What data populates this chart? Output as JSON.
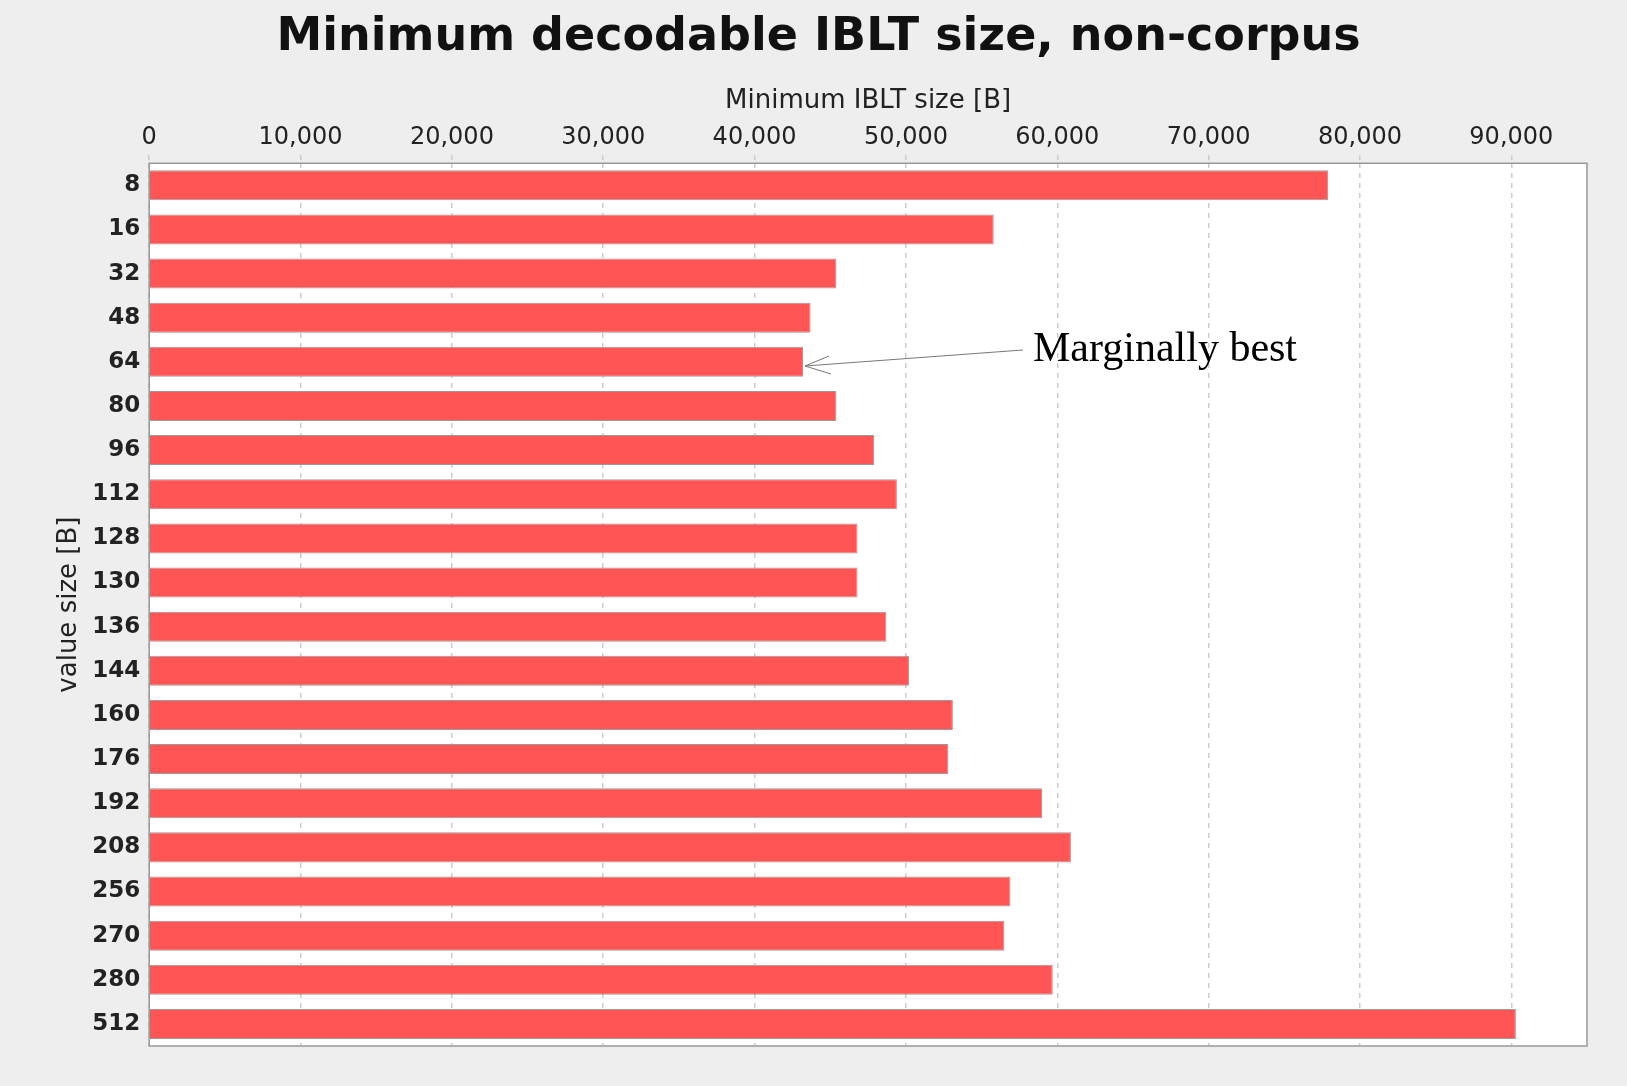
{
  "chart_data": {
    "type": "bar",
    "orientation": "horizontal",
    "title": "Minimum decodable IBLT size, non-corpus",
    "xlabel": "Minimum IBLT size [B]",
    "ylabel": "value size [B]",
    "categories": [
      "8",
      "16",
      "32",
      "48",
      "64",
      "80",
      "96",
      "112",
      "128",
      "130",
      "136",
      "144",
      "160",
      "176",
      "192",
      "208",
      "256",
      "270",
      "280",
      "512"
    ],
    "values": [
      77900,
      55800,
      45400,
      43700,
      43200,
      45400,
      47900,
      49400,
      46800,
      46800,
      48700,
      50200,
      53100,
      52800,
      59000,
      60900,
      56900,
      56500,
      59700,
      90300
    ],
    "color": "#ff5555",
    "xlim": [
      0,
      95000
    ],
    "xticks": [
      {
        "value": 0,
        "label": "0"
      },
      {
        "value": 10000,
        "label": "10,000"
      },
      {
        "value": 20000,
        "label": "20,000"
      },
      {
        "value": 30000,
        "label": "30,000"
      },
      {
        "value": 40000,
        "label": "40,000"
      },
      {
        "value": 50000,
        "label": "50,000"
      },
      {
        "value": 60000,
        "label": "60,000"
      },
      {
        "value": 70000,
        "label": "70,000"
      },
      {
        "value": 80000,
        "label": "80,000"
      },
      {
        "value": 90000,
        "label": "90,000"
      }
    ],
    "grid": "x",
    "legend": false,
    "annotations": [
      {
        "text": "Marginally best",
        "x": 43200,
        "y": "64"
      }
    ]
  }
}
